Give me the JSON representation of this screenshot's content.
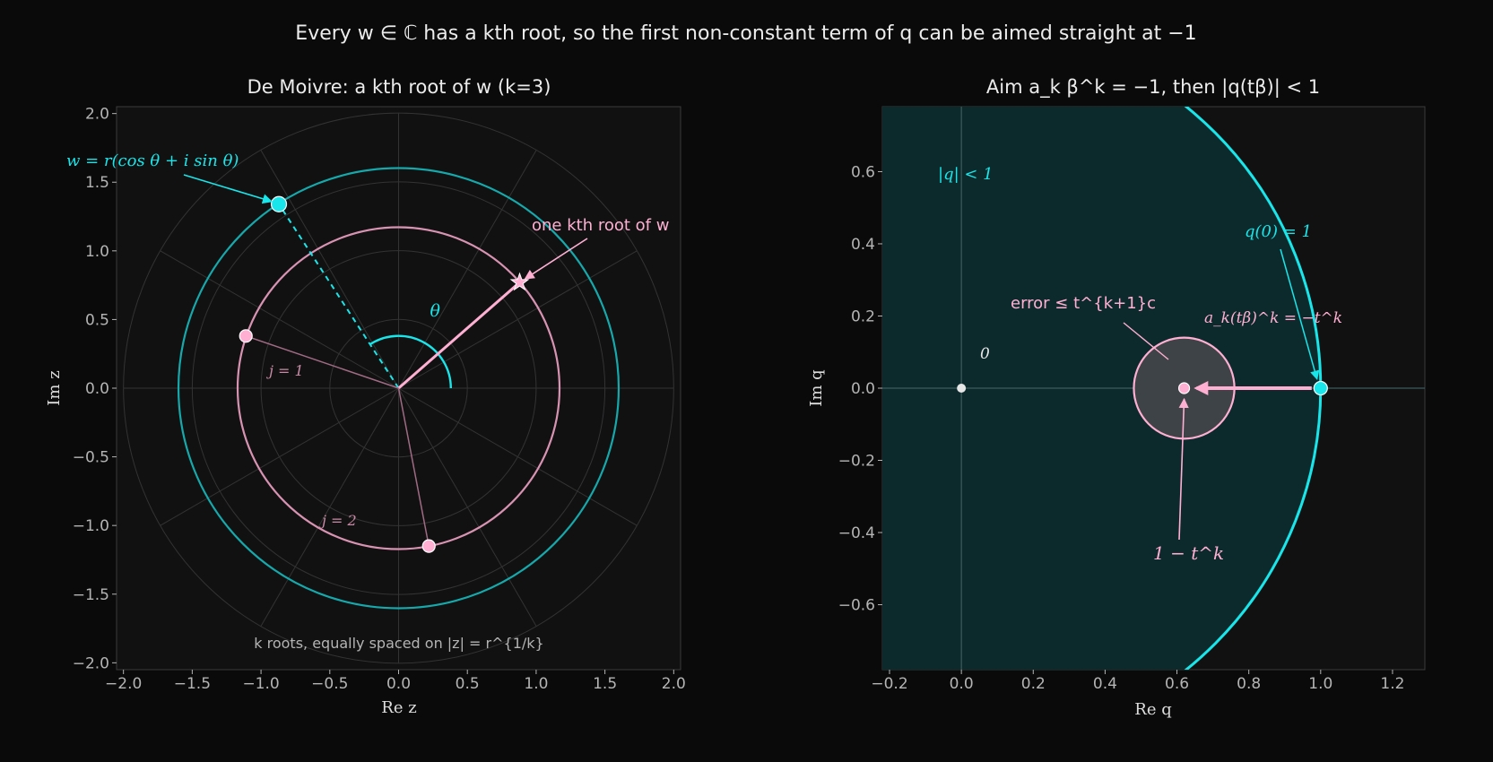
{
  "figure": {
    "suptitle": "Every w ∈ ℂ has a kth root, so the first non-constant term of q can be aimed straight at −1",
    "colors": {
      "background": "#0a0a0a",
      "axes_bg": "#111111",
      "cyan": "#19e6ea",
      "pink": "#ffb0d2",
      "disk": "#0c2a2c",
      "grid": "#333333"
    }
  },
  "chart_data": [
    {
      "type": "scatter",
      "title": "De Moivre: a kth root of w  (k=3)",
      "xlabel": "Re z",
      "ylabel": "Im z",
      "xlim": [
        -2.05,
        2.05
      ],
      "ylim": [
        -2.05,
        2.05
      ],
      "xticks": [
        "−2.0",
        "−1.5",
        "−1.0",
        "−0.5",
        "0.0",
        "0.5",
        "1.0",
        "1.5",
        "2.0"
      ],
      "yticks": [
        "−2.0",
        "−1.5",
        "−1.0",
        "−0.5",
        "0.0",
        "0.5",
        "1.0",
        "1.5",
        "2.0"
      ],
      "k": 3,
      "w": {
        "r": 1.6,
        "theta_deg": 123,
        "x": -0.87,
        "y": 1.34
      },
      "root_radius": 1.17,
      "roots": [
        {
          "name": "principal",
          "x": 0.88,
          "y": 0.77
        },
        {
          "name": "j=1",
          "x": -1.11,
          "y": 0.38
        },
        {
          "name": "j=2",
          "x": 0.22,
          "y": -1.15
        }
      ],
      "polar_grid_radii": [
        0.5,
        1.0,
        1.5,
        2.0
      ],
      "annotations": {
        "w_label": "w = r(cos θ + i sin θ)",
        "root_label": "one kth root of w",
        "theta_label": "θ",
        "j1_label": "j = 1",
        "j2_label": "j = 2",
        "bottom_note": "k roots, equally spaced on |z| = r^{1/k}"
      }
    },
    {
      "type": "scatter",
      "title": "Aim a_k β^k = −1, then |q(tβ)| < 1",
      "xlabel": "Re q",
      "ylabel": "Im q",
      "xlim": [
        -0.22,
        1.29
      ],
      "ylim": [
        -0.78,
        0.78
      ],
      "xticks": [
        "−0.2",
        "0.0",
        "0.2",
        "0.4",
        "0.6",
        "0.8",
        "1.0",
        "1.2"
      ],
      "yticks": [
        "−0.6",
        "−0.4",
        "−0.2",
        "0.0",
        "0.2",
        "0.4",
        "0.6"
      ],
      "unit_disk_radius": 1,
      "points": [
        {
          "name": "origin",
          "x": 0,
          "y": 0
        },
        {
          "name": "q(0)",
          "x": 1,
          "y": 0
        },
        {
          "name": "1 - t^k",
          "x": 0.62,
          "y": 0
        }
      ],
      "error_radius": 0.14,
      "annotations": {
        "disk_label": "|q| < 1",
        "q0_label": "q(0) = 1",
        "error_label": "error ≤ t^{k+1}c",
        "shift_label": "a_k(tβ)^k = −t^k",
        "origin_label": "0",
        "target_label": "1 − t^k"
      }
    }
  ]
}
